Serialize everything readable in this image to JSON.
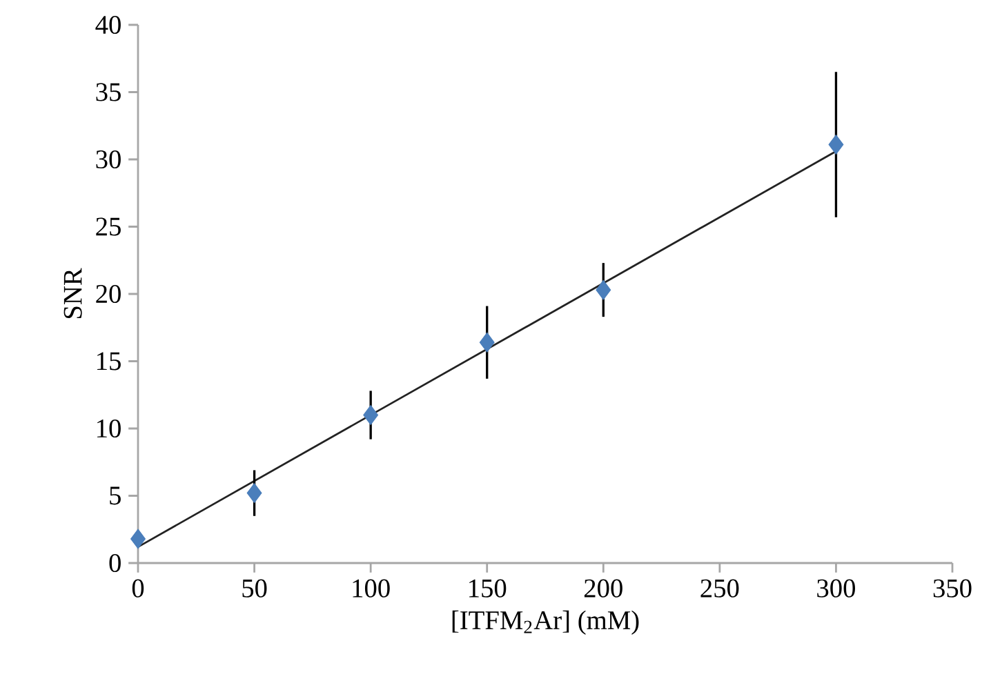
{
  "chart_data": {
    "type": "scatter",
    "xlabel": "[ITFM$_{2}$Ar] (mM)",
    "ylabel": "SNR",
    "x": [
      0,
      50,
      100,
      150,
      200,
      300
    ],
    "xlim": [
      0,
      350
    ],
    "ylim": [
      0,
      40
    ],
    "xticks": [
      0,
      50,
      100,
      150,
      200,
      250,
      300,
      350
    ],
    "yticks": [
      0,
      5,
      10,
      15,
      20,
      25,
      30,
      35,
      40
    ],
    "grid": false,
    "marker": "diamond",
    "series": [
      {
        "color": "#4a7ebb",
        "values": [
          1.8,
          5.2,
          11,
          16.4,
          20.3,
          31.1
        ],
        "errors": [
          null,
          1.7,
          1.8,
          2.7,
          2,
          5.4
        ]
      },
      {
        "type": "line",
        "color": "#222222",
        "x": [
          0,
          300
        ],
        "values": [
          1.2,
          30.6
        ],
        "marker": "none"
      }
    ]
  }
}
